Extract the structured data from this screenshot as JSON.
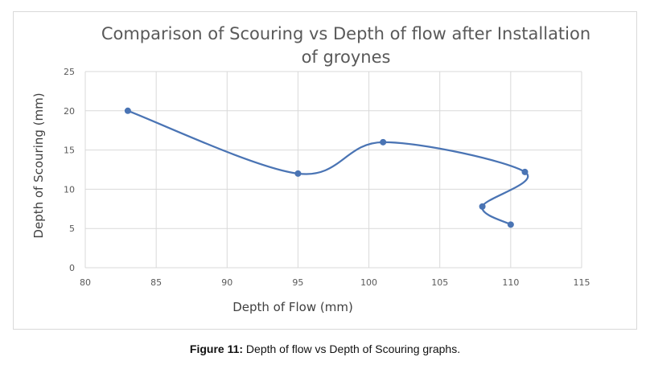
{
  "chart_data": {
    "type": "scatter",
    "title_line1": "Comparison of Scouring vs Depth of flow after Installation",
    "title_line2": "of groynes",
    "xlabel": "Depth of Flow (mm)",
    "ylabel": "Depth of Scouring (mm)",
    "xlim": [
      80,
      115
    ],
    "ylim": [
      0,
      25
    ],
    "x_ticks": [
      "80",
      "85",
      "90",
      "95",
      "100",
      "105",
      "110",
      "115"
    ],
    "y_ticks": [
      "0",
      "5",
      "10",
      "15",
      "20",
      "25"
    ],
    "grid": true,
    "smoothed_line": true,
    "series": [
      {
        "x": [
          83,
          95,
          101,
          111,
          108,
          110
        ],
        "y": [
          20,
          12,
          16,
          12.2,
          7.8,
          5.5
        ]
      }
    ],
    "colors": {
      "series": "#4a74b4",
      "grid": "#d9d9d9"
    }
  },
  "caption": {
    "label": "Figure 11:",
    "text": " Depth of flow vs Depth of Scouring graphs."
  }
}
